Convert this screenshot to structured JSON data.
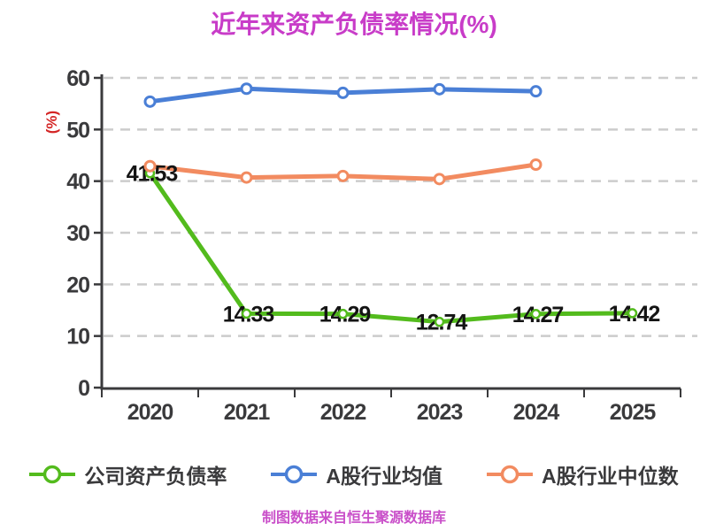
{
  "title": {
    "text": "近年来资产负债率情况(%)",
    "color": "#c83cc8"
  },
  "footer": {
    "text": "制图数据来自恒生聚源数据库",
    "color": "#c94fc9"
  },
  "colors": {
    "axis": "#3a3a3c",
    "grid": "#cccccc",
    "data_label": "#141414",
    "ylabel": "#d42626",
    "marker_fill": "#ffffff"
  },
  "chart_data": {
    "type": "line",
    "title": "近年来资产负债率情况(%)",
    "ylabel": "(%)",
    "categories": [
      "2020",
      "2021",
      "2022",
      "2023",
      "2024",
      "2025"
    ],
    "yticks": [
      0,
      10,
      20,
      30,
      40,
      50,
      60
    ],
    "ylim": [
      0,
      60
    ],
    "grid": "horizontal-dashed",
    "legend_position": "bottom",
    "series": [
      {
        "name": "公司资产负债率",
        "color": "#53bb1d",
        "values": [
          41.53,
          14.33,
          14.29,
          12.74,
          14.27,
          14.42
        ],
        "data_labels": [
          "41.53",
          "14.33",
          "14.29",
          "12.74",
          "14.27",
          "14.42"
        ]
      },
      {
        "name": "A股行业均值",
        "color": "#4a7fd6",
        "values": [
          55.4,
          57.9,
          57.1,
          57.8,
          57.4
        ],
        "data_labels": null
      },
      {
        "name": "A股行业中位数",
        "color": "#f28b60",
        "values": [
          42.9,
          40.7,
          41.0,
          40.4,
          43.2
        ],
        "data_labels": null
      }
    ]
  },
  "legend": {
    "items": [
      {
        "label": "公司资产负债率",
        "color": "#53bb1d"
      },
      {
        "label": "A股行业均值",
        "color": "#4a7fd6"
      },
      {
        "label": "A股行业中位数",
        "color": "#f28b60"
      }
    ]
  }
}
